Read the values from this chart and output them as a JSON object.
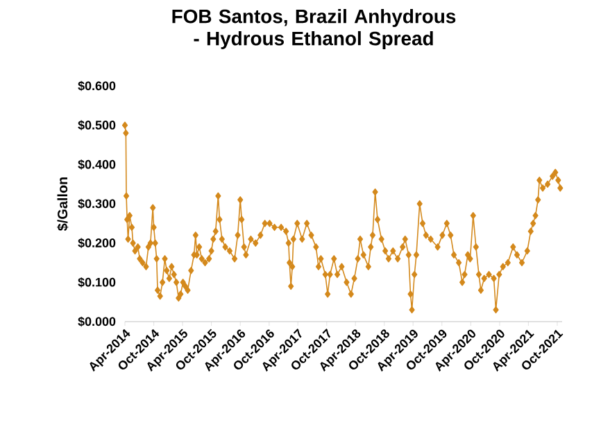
{
  "chart_data": {
    "type": "line",
    "title": "FOB Santos, Brazil Anhydrous - Hydrous Ethanol Spread",
    "ylabel": "$/Gallon",
    "color": "#d4891c",
    "marker": "diamond",
    "xlim": [
      "2014-04-01",
      "2021-11-01"
    ],
    "xticks": [
      {
        "value": "2014-04-01",
        "label": "Apr-2014"
      },
      {
        "value": "2014-10-01",
        "label": "Oct-2014"
      },
      {
        "value": "2015-04-01",
        "label": "Apr-2015"
      },
      {
        "value": "2015-10-01",
        "label": "Oct-2015"
      },
      {
        "value": "2016-04-01",
        "label": "Apr-2016"
      },
      {
        "value": "2016-10-01",
        "label": "Oct-2016"
      },
      {
        "value": "2017-04-01",
        "label": "Apr-2017"
      },
      {
        "value": "2017-10-01",
        "label": "Oct-2017"
      },
      {
        "value": "2018-04-01",
        "label": "Apr-2018"
      },
      {
        "value": "2018-10-01",
        "label": "Oct-2018"
      },
      {
        "value": "2019-04-01",
        "label": "Apr-2019"
      },
      {
        "value": "2019-10-01",
        "label": "Oct-2019"
      },
      {
        "value": "2020-04-01",
        "label": "Apr-2020"
      },
      {
        "value": "2020-10-01",
        "label": "Oct-2020"
      },
      {
        "value": "2021-04-01",
        "label": "Apr-2021"
      },
      {
        "value": "2021-10-01",
        "label": "Oct-2021"
      }
    ],
    "ylim": [
      0,
      0.6
    ],
    "yticks": [
      {
        "value": 0,
        "label": "$0.000"
      },
      {
        "value": 0.1,
        "label": "$0.100"
      },
      {
        "value": 0.2,
        "label": "$0.200"
      },
      {
        "value": 0.3,
        "label": "$0.300"
      },
      {
        "value": 0.4,
        "label": "$0.400"
      },
      {
        "value": 0.5,
        "label": "$0.500"
      },
      {
        "value": 0.6,
        "label": "$0.600"
      }
    ],
    "x": [
      "2014-04-01",
      "2014-04-07",
      "2014-04-10",
      "2014-04-15",
      "2014-04-21",
      "2014-05-01",
      "2014-05-15",
      "2014-05-22",
      "2014-06-04",
      "2014-06-22",
      "2014-07-04",
      "2014-07-22",
      "2014-08-13",
      "2014-08-28",
      "2014-09-10",
      "2014-09-25",
      "2014-10-01",
      "2014-10-10",
      "2014-10-19",
      "2014-10-25",
      "2014-11-10",
      "2014-11-25",
      "2014-12-10",
      "2014-12-22",
      "2015-01-07",
      "2015-01-22",
      "2015-02-06",
      "2015-02-21",
      "2015-03-07",
      "2015-03-20",
      "2015-04-04",
      "2015-04-19",
      "2015-05-04",
      "2015-05-25",
      "2015-06-13",
      "2015-06-23",
      "2015-07-01",
      "2015-07-16",
      "2015-08-01",
      "2015-08-22",
      "2015-09-16",
      "2015-10-01",
      "2015-10-13",
      "2015-10-28",
      "2015-11-13",
      "2015-11-22",
      "2015-12-07",
      "2015-12-28",
      "2016-01-25",
      "2016-02-25",
      "2016-03-16",
      "2016-04-01",
      "2016-04-10",
      "2016-04-25",
      "2016-05-07",
      "2016-06-07",
      "2016-07-07",
      "2016-08-07",
      "2016-09-04",
      "2016-10-04",
      "2016-11-04",
      "2016-12-16",
      "2017-01-16",
      "2017-02-01",
      "2017-02-07",
      "2017-02-16",
      "2017-02-25",
      "2017-03-04",
      "2017-03-28",
      "2017-04-28",
      "2017-05-28",
      "2017-06-25",
      "2017-07-25",
      "2017-08-10",
      "2017-08-25",
      "2017-09-22",
      "2017-10-07",
      "2017-10-22",
      "2017-11-16",
      "2017-12-07",
      "2018-01-04",
      "2018-02-04",
      "2018-03-04",
      "2018-03-25",
      "2018-04-16",
      "2018-05-01",
      "2018-05-22",
      "2018-06-22",
      "2018-07-07",
      "2018-07-19",
      "2018-08-04",
      "2018-08-19",
      "2018-09-13",
      "2018-10-07",
      "2018-10-28",
      "2018-11-25",
      "2018-12-25",
      "2019-01-25",
      "2019-02-10",
      "2019-03-04",
      "2019-03-16",
      "2019-03-25",
      "2019-04-10",
      "2019-04-22",
      "2019-05-13",
      "2019-06-01",
      "2019-06-22",
      "2019-07-22",
      "2019-09-04",
      "2019-10-04",
      "2019-11-01",
      "2019-11-25",
      "2019-12-16",
      "2020-01-16",
      "2020-02-07",
      "2020-02-22",
      "2020-03-13",
      "2020-03-28",
      "2020-04-16",
      "2020-05-04",
      "2020-05-22",
      "2020-06-04",
      "2020-06-25",
      "2020-07-25",
      "2020-08-25",
      "2020-09-07",
      "2020-09-28",
      "2020-10-22",
      "2020-11-22",
      "2020-12-25",
      "2021-01-19",
      "2021-02-19",
      "2021-03-25",
      "2021-04-16",
      "2021-05-01",
      "2021-05-16",
      "2021-06-01",
      "2021-06-10",
      "2021-07-01",
      "2021-08-01",
      "2021-09-01",
      "2021-09-19",
      "2021-10-07",
      "2021-10-20"
    ],
    "values": [
      0.5,
      0.48,
      0.32,
      0.26,
      0.21,
      0.27,
      0.24,
      0.2,
      0.18,
      0.19,
      0.16,
      0.15,
      0.14,
      0.19,
      0.2,
      0.29,
      0.24,
      0.2,
      0.16,
      0.08,
      0.065,
      0.1,
      0.16,
      0.13,
      0.11,
      0.14,
      0.12,
      0.1,
      0.06,
      0.07,
      0.1,
      0.09,
      0.08,
      0.13,
      0.17,
      0.22,
      0.17,
      0.19,
      0.16,
      0.15,
      0.16,
      0.18,
      0.21,
      0.23,
      0.32,
      0.26,
      0.21,
      0.19,
      0.18,
      0.16,
      0.22,
      0.31,
      0.26,
      0.19,
      0.17,
      0.21,
      0.2,
      0.22,
      0.25,
      0.25,
      0.24,
      0.24,
      0.23,
      0.2,
      0.15,
      0.09,
      0.14,
      0.21,
      0.25,
      0.21,
      0.25,
      0.22,
      0.19,
      0.14,
      0.16,
      0.12,
      0.07,
      0.12,
      0.16,
      0.12,
      0.14,
      0.1,
      0.07,
      0.11,
      0.16,
      0.21,
      0.17,
      0.14,
      0.19,
      0.22,
      0.33,
      0.26,
      0.21,
      0.18,
      0.16,
      0.18,
      0.16,
      0.19,
      0.21,
      0.17,
      0.07,
      0.03,
      0.12,
      0.17,
      0.3,
      0.25,
      0.22,
      0.21,
      0.19,
      0.22,
      0.25,
      0.22,
      0.17,
      0.15,
      0.1,
      0.12,
      0.17,
      0.16,
      0.27,
      0.19,
      0.12,
      0.08,
      0.11,
      0.12,
      0.11,
      0.03,
      0.12,
      0.14,
      0.15,
      0.19,
      0.17,
      0.15,
      0.18,
      0.23,
      0.25,
      0.27,
      0.31,
      0.36,
      0.34,
      0.35,
      0.37,
      0.38,
      0.36,
      0.34
    ]
  }
}
